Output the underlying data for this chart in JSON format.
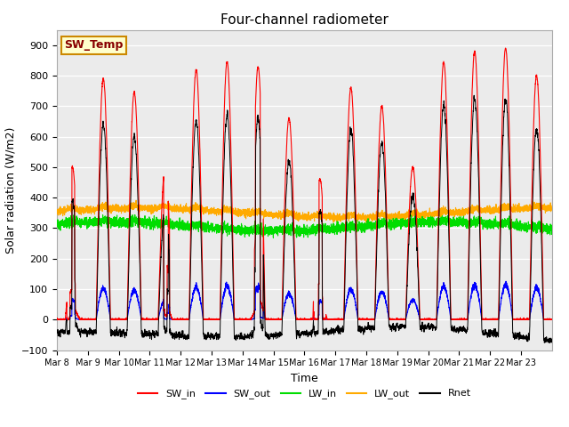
{
  "title": "Four-channel radiometer",
  "xlabel": "Time",
  "ylabel": "Solar radiation (W/m2)",
  "ylim": [
    -100,
    950
  ],
  "yticks": [
    -100,
    0,
    100,
    200,
    300,
    400,
    500,
    600,
    700,
    800,
    900
  ],
  "x_labels": [
    "Mar 8",
    "Mar 9",
    "Mar 10",
    "Mar 11",
    "Mar 12",
    "Mar 13",
    "Mar 14",
    "Mar 15",
    "Mar 16",
    "Mar 17",
    "Mar 18",
    "Mar 19",
    "Mar 20",
    "Mar 21",
    "Mar 22",
    "Mar 23"
  ],
  "colors": {
    "SW_in": "#ff0000",
    "SW_out": "#0000ff",
    "LW_in": "#00dd00",
    "LW_out": "#ffaa00",
    "Rnet": "#000000"
  },
  "annotation_text": "SW_Temp",
  "annotation_color": "#880000",
  "annotation_bg": "#ffffcc",
  "annotation_border": "#cc8800",
  "bg_color": "#ebebeb",
  "n_days": 16,
  "points_per_day": 288,
  "seed": 42,
  "SW_in_peaks": [
    500,
    790,
    745,
    500,
    820,
    845,
    830,
    660,
    460,
    760,
    700,
    500,
    845,
    880,
    890,
    800
  ],
  "partly_cloudy_days": [
    0,
    3,
    6,
    8
  ],
  "LW_in_base": 305,
  "LW_out_base": 350
}
